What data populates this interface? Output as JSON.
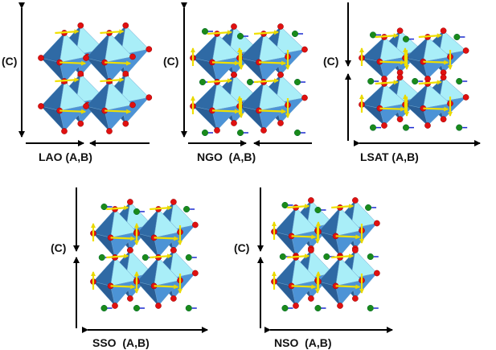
{
  "panels": [
    {
      "id": "lao",
      "axis_c": "(C)",
      "label": "LAO (A,B)",
      "strain": "compressive-in-plane"
    },
    {
      "id": "ngo",
      "axis_c": "(C)",
      "label": "NGO  (A,B)",
      "strain": "compressive-in-plane"
    },
    {
      "id": "lsat",
      "axis_c": "(C)",
      "label": "LSAT (A,B)",
      "strain": "tensile-in-plane"
    },
    {
      "id": "sso",
      "axis_c": "(C)",
      "label": "SSO  (A,B)",
      "strain": "tensile-in-plane"
    },
    {
      "id": "nso",
      "axis_c": "(C)",
      "label": "NSO  (A,B)",
      "strain": "tensile-in-plane"
    }
  ],
  "colors": {
    "oct_dark": "#2f6aa5",
    "oct_light": "#a9eef8",
    "oct_mid": "#4c93d6",
    "oxygen": "#e01010",
    "a_site": "#1a8a1a",
    "displacement": "#f0e000",
    "minor": "#1a2ad0"
  }
}
